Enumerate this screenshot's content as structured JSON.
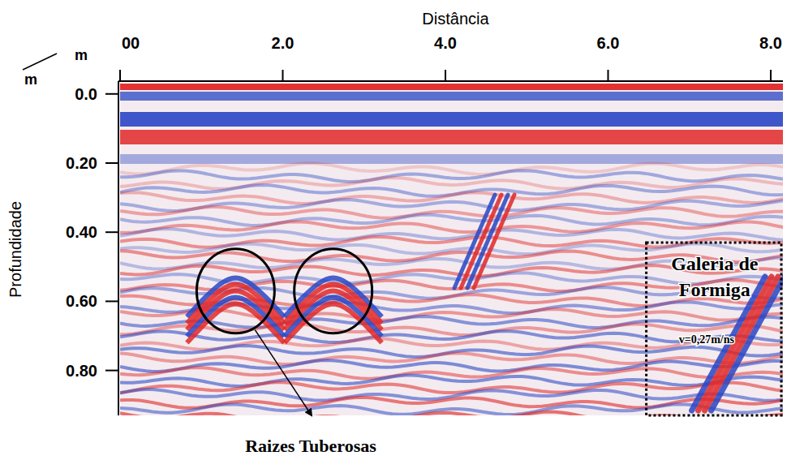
{
  "chart_data": {
    "type": "radargram",
    "x_label": "Distância",
    "y_label": "Profundidade",
    "x_unit": "m",
    "y_unit": "m",
    "xlim": [
      0,
      8.15
    ],
    "ylim": [
      -0.03,
      0.93
    ],
    "xticks": [
      {
        "value": 0,
        "label": "00"
      },
      {
        "value": 2,
        "label": "2.0"
      },
      {
        "value": 4,
        "label": "4.0"
      },
      {
        "value": 6,
        "label": "6.0"
      },
      {
        "value": 8,
        "label": "8.0"
      }
    ],
    "yticks": [
      {
        "value": 0,
        "label": "0.0"
      },
      {
        "value": 0.2,
        "label": "0.20"
      },
      {
        "value": 0.4,
        "label": "0.40"
      },
      {
        "value": 0.6,
        "label": "0.60"
      },
      {
        "value": 0.8,
        "label": "0.80"
      }
    ],
    "annotations": [
      {
        "text": "Raizes Tuberosas",
        "targets": [
          {
            "x": 1.42,
            "y": 0.57
          },
          {
            "x": 2.62,
            "y": 0.57
          }
        ]
      },
      {
        "text": "Galeria de Formiga",
        "subtext": "v=0,27m/ns",
        "x": [
          6.47,
          8.15
        ],
        "y": [
          0.43,
          0.93
        ]
      }
    ]
  }
}
